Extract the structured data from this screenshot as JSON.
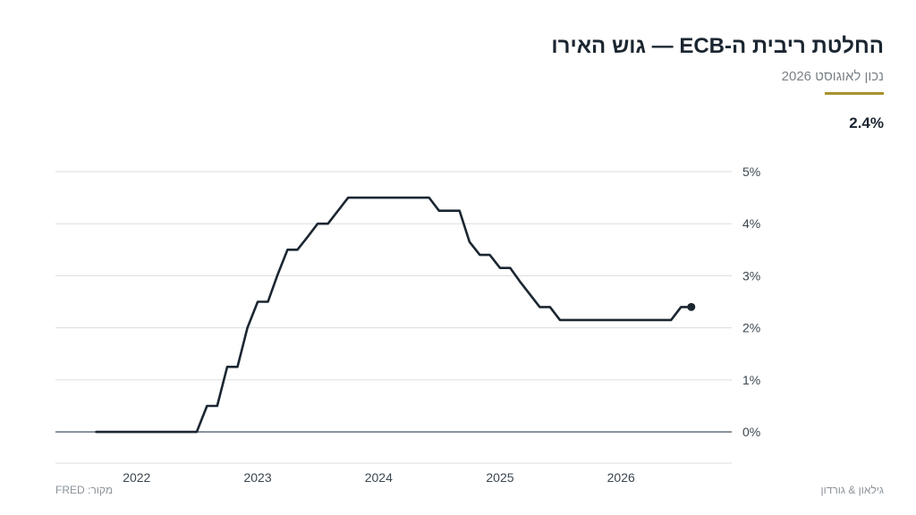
{
  "header": {
    "title": "החלטת ריבית ה-ECB — גוש האירו",
    "subtitle": "נכון לאוגוסט 2026",
    "current_value": "2.4%"
  },
  "colors": {
    "accent": "#a8922e",
    "line": "#1b2631",
    "grid": "#d9dde0",
    "zero_line": "#55616c"
  },
  "footer": {
    "source": "מקור: FRED",
    "credit": "גילאון & גורדון"
  },
  "chart_data": {
    "type": "line",
    "title": "החלטת ריבית ה-ECB — גוש האירו",
    "subtitle": "נכון לאוגוסט 2026",
    "xlabel": "",
    "ylabel": "",
    "ylim": [
      -0.6,
      5
    ],
    "yticks": [
      0,
      1,
      2,
      3,
      4,
      5
    ],
    "ytick_labels": [
      "0%",
      "1%",
      "2%",
      "3%",
      "4%",
      "5%"
    ],
    "xticks": [
      "2022-01-01",
      "2023-01-01",
      "2024-01-01",
      "2025-01-01",
      "2026-01-01"
    ],
    "xtick_labels": [
      "2022",
      "2023",
      "2024",
      "2025",
      "2026"
    ],
    "xlim": [
      "2021-05-01",
      "2026-12-01"
    ],
    "grid": true,
    "series": [
      {
        "values": [
          {
            "x": "2021-09-01",
            "y": 0
          },
          {
            "x": "2022-07-01",
            "y": 0
          },
          {
            "x": "2022-08-01",
            "y": 0.5
          },
          {
            "x": "2022-09-01",
            "y": 0.5
          },
          {
            "x": "2022-10-01",
            "y": 1.25
          },
          {
            "x": "2022-11-01",
            "y": 1.25
          },
          {
            "x": "2022-12-01",
            "y": 2.0
          },
          {
            "x": "2023-01-01",
            "y": 2.5
          },
          {
            "x": "2023-02-01",
            "y": 2.5
          },
          {
            "x": "2023-03-01",
            "y": 3.0
          },
          {
            "x": "2023-04-01",
            "y": 3.5
          },
          {
            "x": "2023-05-01",
            "y": 3.5
          },
          {
            "x": "2023-06-01",
            "y": 3.75
          },
          {
            "x": "2023-07-01",
            "y": 4.0
          },
          {
            "x": "2023-08-01",
            "y": 4.0
          },
          {
            "x": "2023-10-01",
            "y": 4.5
          },
          {
            "x": "2024-06-01",
            "y": 4.5
          },
          {
            "x": "2024-07-01",
            "y": 4.25
          },
          {
            "x": "2024-09-01",
            "y": 4.25
          },
          {
            "x": "2024-10-01",
            "y": 3.65
          },
          {
            "x": "2024-11-01",
            "y": 3.4
          },
          {
            "x": "2024-12-01",
            "y": 3.4
          },
          {
            "x": "2025-01-01",
            "y": 3.15
          },
          {
            "x": "2025-02-01",
            "y": 3.15
          },
          {
            "x": "2025-03-01",
            "y": 2.9
          },
          {
            "x": "2025-05-01",
            "y": 2.4
          },
          {
            "x": "2025-06-01",
            "y": 2.4
          },
          {
            "x": "2025-07-01",
            "y": 2.15
          },
          {
            "x": "2026-06-01",
            "y": 2.15
          },
          {
            "x": "2026-07-01",
            "y": 2.4
          },
          {
            "x": "2026-08-01",
            "y": 2.4
          }
        ]
      }
    ]
  }
}
